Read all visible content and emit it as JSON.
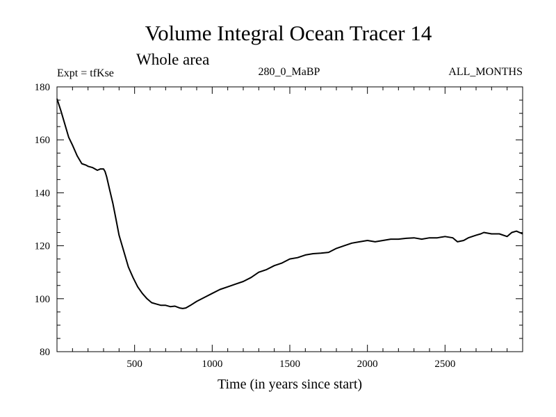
{
  "chart_data": {
    "type": "line",
    "title": "Volume Integral Ocean Tracer 14",
    "subtitle": "Whole area",
    "annotations": {
      "left": "Expt = tfKse",
      "center": "280_0_MaBP",
      "right": "ALL_MONTHS"
    },
    "xlabel": "Time (in years since start)",
    "ylabel": "",
    "xlim": [
      0,
      3000
    ],
    "ylim": [
      80,
      180
    ],
    "xticks": [
      500,
      1000,
      1500,
      2000,
      2500
    ],
    "yticks": [
      80,
      100,
      120,
      140,
      160,
      180
    ],
    "grid": false,
    "series": [
      {
        "name": "Tracer 14",
        "x": [
          0,
          25,
          50,
          75,
          100,
          130,
          160,
          185,
          200,
          230,
          260,
          280,
          300,
          310,
          320,
          340,
          360,
          380,
          400,
          430,
          460,
          490,
          520,
          550,
          580,
          610,
          640,
          670,
          700,
          730,
          760,
          790,
          810,
          830,
          860,
          900,
          950,
          1000,
          1050,
          1100,
          1150,
          1200,
          1250,
          1300,
          1350,
          1400,
          1450,
          1500,
          1550,
          1600,
          1650,
          1700,
          1750,
          1800,
          1850,
          1900,
          1950,
          2000,
          2050,
          2100,
          2150,
          2200,
          2250,
          2300,
          2350,
          2400,
          2450,
          2500,
          2550,
          2580,
          2620,
          2650,
          2700,
          2730,
          2750,
          2800,
          2850,
          2900,
          2930,
          2960,
          3000
        ],
        "y": [
          175.5,
          171,
          166,
          161,
          158,
          154,
          151,
          150.5,
          150,
          149.5,
          148.5,
          149,
          149,
          148,
          146,
          141,
          136,
          130,
          124,
          118,
          112,
          108,
          104.5,
          102,
          100,
          98.5,
          98,
          97.5,
          97.5,
          97,
          97.2,
          96.5,
          96.3,
          96.5,
          97.5,
          99,
          100.5,
          102,
          103.5,
          104.5,
          105.5,
          106.5,
          108,
          110,
          111,
          112.5,
          113.5,
          115,
          115.5,
          116.5,
          117,
          117.2,
          117.5,
          119,
          120,
          121,
          121.5,
          122,
          121.5,
          122,
          122.5,
          122.5,
          122.8,
          123,
          122.5,
          123,
          123,
          123.5,
          123,
          121.5,
          122,
          123,
          124,
          124.5,
          125,
          124.5,
          124.5,
          123.5,
          125,
          125.5,
          124.5
        ]
      }
    ]
  }
}
